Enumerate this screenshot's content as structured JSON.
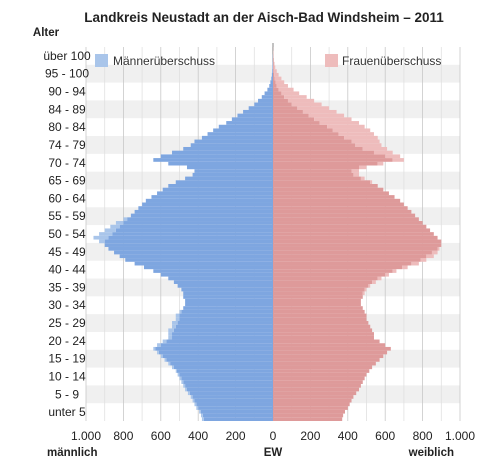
{
  "chart_data": {
    "type": "bar",
    "subtype": "population-pyramid",
    "title": "Landkreis Neustadt an der Aisch-Bad Windsheim – 2011",
    "y_axis_title": "Alter",
    "age_labels": [
      "über 100",
      "95 - 100",
      "90 - 94",
      "84 - 89",
      "80 - 84",
      "74 - 79",
      "70 - 74",
      "65 - 69",
      "60 - 64",
      "55 - 59",
      "50 - 54",
      "45 - 49",
      "40 - 44",
      "35 - 39",
      "30 - 34",
      "25 - 29",
      "20 - 24",
      "15 - 19",
      "10 - 14",
      "5 - 9",
      "unter 5"
    ],
    "x_ticks_left": [
      "1.000",
      "800",
      "600",
      "400",
      "200",
      "0"
    ],
    "x_ticks_right": [
      "200",
      "400",
      "600",
      "800",
      "1.000"
    ],
    "xlim": [
      -1000,
      1000
    ],
    "x_unit": "EW",
    "left_label": "männlich",
    "right_label": "weiblich",
    "legend": [
      {
        "label": "Männerüberschuss",
        "color": "#a9c5ea",
        "position": "top-left"
      },
      {
        "label": "Frauenüberschuss",
        "color": "#eebcbc",
        "position": "top-right"
      }
    ],
    "colors": {
      "male": "#7ea6e0",
      "female": "#de9a9a",
      "male_surplus": "#a9c5ea",
      "female_surplus": "#eebcbc"
    },
    "ages": [
      0,
      1,
      2,
      3,
      4,
      5,
      6,
      7,
      8,
      9,
      10,
      11,
      12,
      13,
      14,
      15,
      16,
      17,
      18,
      19,
      20,
      21,
      22,
      23,
      24,
      25,
      26,
      27,
      28,
      29,
      30,
      31,
      32,
      33,
      34,
      35,
      36,
      37,
      38,
      39,
      40,
      41,
      42,
      43,
      44,
      45,
      46,
      47,
      48,
      49,
      50,
      51,
      52,
      53,
      54,
      55,
      56,
      57,
      58,
      59,
      60,
      61,
      62,
      63,
      64,
      65,
      66,
      67,
      68,
      69,
      70,
      71,
      72,
      73,
      74,
      75,
      76,
      77,
      78,
      79,
      80,
      81,
      82,
      83,
      84,
      85,
      86,
      87,
      88,
      89,
      90,
      91,
      92,
      93,
      94,
      95,
      96,
      97,
      98,
      99,
      100
    ],
    "male": [
      380,
      385,
      395,
      410,
      420,
      430,
      440,
      455,
      470,
      480,
      490,
      500,
      510,
      520,
      540,
      560,
      580,
      600,
      620,
      640,
      620,
      590,
      560,
      560,
      560,
      540,
      540,
      520,
      520,
      500,
      480,
      470,
      470,
      480,
      480,
      490,
      510,
      530,
      560,
      600,
      640,
      690,
      740,
      790,
      820,
      850,
      880,
      900,
      930,
      960,
      930,
      900,
      870,
      840,
      800,
      760,
      740,
      720,
      700,
      680,
      650,
      620,
      590,
      560,
      520,
      470,
      430,
      420,
      460,
      560,
      640,
      600,
      540,
      480,
      440,
      420,
      380,
      350,
      320,
      290,
      250,
      220,
      190,
      160,
      130,
      100,
      80,
      60,
      45,
      30,
      20,
      14,
      9,
      6,
      4,
      3,
      2,
      1,
      1,
      0,
      0
    ],
    "female": [
      370,
      375,
      385,
      400,
      410,
      420,
      430,
      445,
      460,
      470,
      480,
      490,
      500,
      515,
      530,
      550,
      570,
      590,
      610,
      630,
      600,
      570,
      540,
      540,
      530,
      520,
      510,
      500,
      500,
      490,
      480,
      470,
      470,
      480,
      490,
      500,
      520,
      550,
      580,
      620,
      660,
      720,
      780,
      820,
      860,
      880,
      890,
      900,
      900,
      880,
      860,
      840,
      820,
      800,
      780,
      760,
      740,
      720,
      700,
      680,
      650,
      620,
      590,
      560,
      530,
      490,
      460,
      460,
      500,
      590,
      700,
      680,
      640,
      610,
      580,
      570,
      560,
      540,
      520,
      490,
      460,
      420,
      380,
      340,
      300,
      260,
      220,
      180,
      140,
      110,
      80,
      60,
      45,
      30,
      20,
      12,
      8,
      5,
      3,
      2,
      1
    ]
  }
}
